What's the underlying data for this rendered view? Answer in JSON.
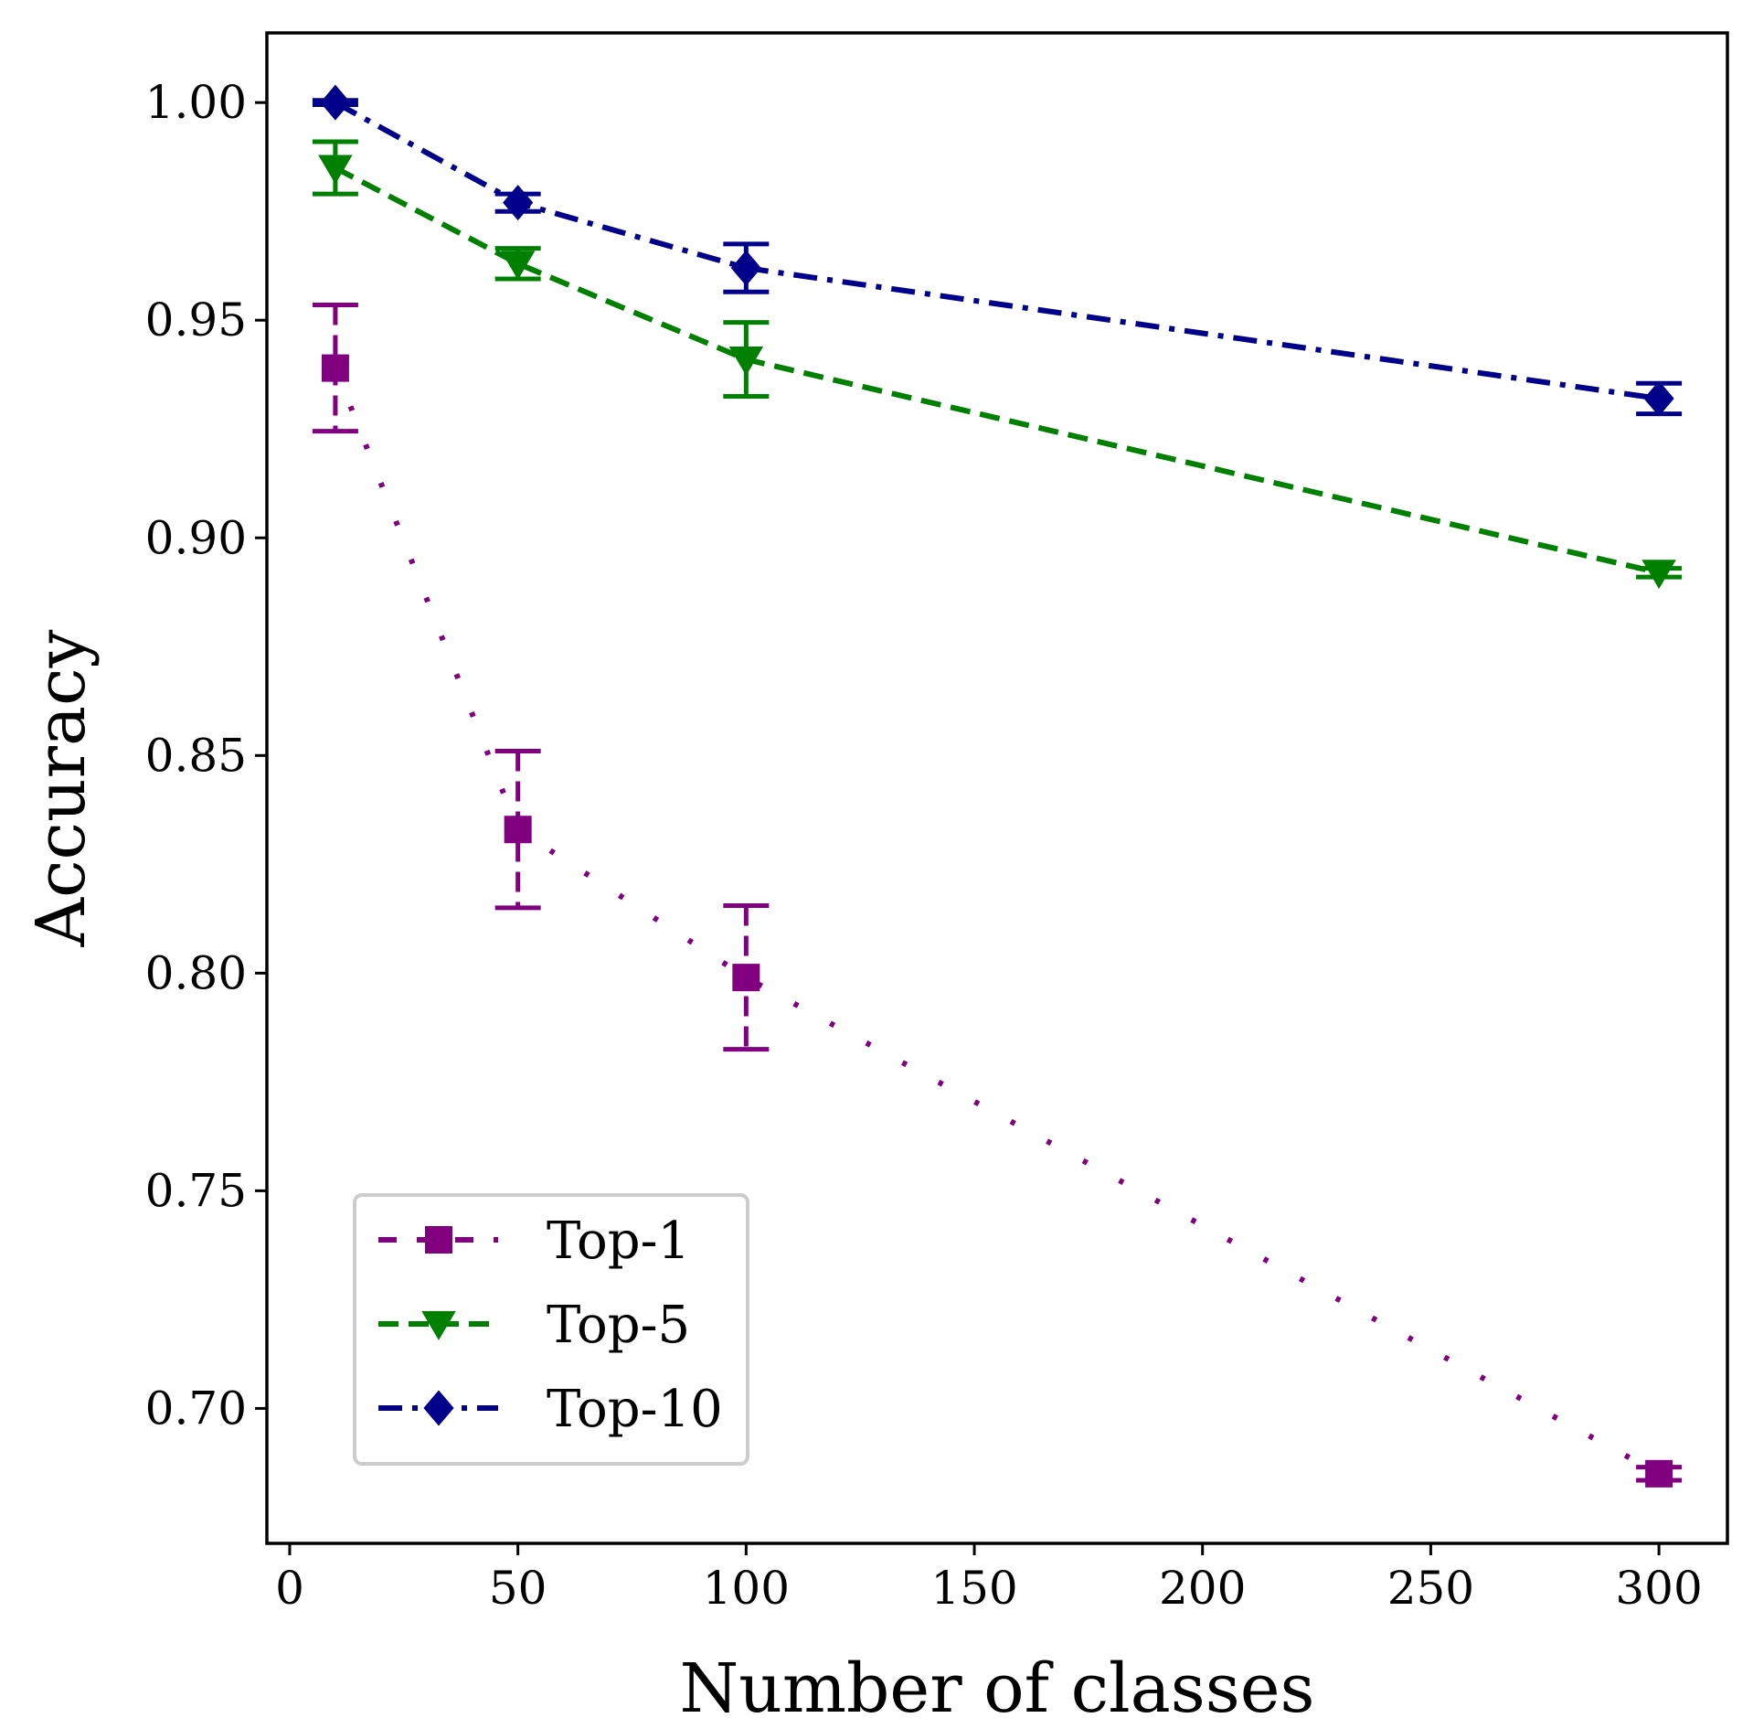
{
  "chart_data": {
    "type": "line",
    "title": "",
    "xlabel": "Number of classes",
    "ylabel": "Accuracy",
    "xlim": [
      -5,
      315
    ],
    "ylim": [
      0.669,
      1.016
    ],
    "xticks": [
      0,
      50,
      100,
      150,
      200,
      250,
      300
    ],
    "xtick_labels": [
      "0",
      "50",
      "100",
      "150",
      "200",
      "250",
      "300"
    ],
    "yticks": [
      0.7,
      0.75,
      0.8,
      0.85,
      0.9,
      0.95,
      1.0
    ],
    "ytick_labels": [
      "0.70",
      "0.75",
      "0.80",
      "0.85",
      "0.90",
      "0.95",
      "1.00"
    ],
    "grid": false,
    "legend_position": "lower-left",
    "x": [
      10,
      50,
      100,
      300
    ],
    "series": [
      {
        "name": "Top-1",
        "values": [
          0.939,
          0.833,
          0.799,
          0.685
        ],
        "errors": [
          0.0145,
          0.018,
          0.0165,
          0.0015
        ],
        "color": "#800080",
        "marker": "square",
        "linestyle": "dotted"
      },
      {
        "name": "Top-5",
        "values": [
          0.985,
          0.963,
          0.941,
          0.892
        ],
        "errors": [
          0.006,
          0.0035,
          0.0085,
          0.001
        ],
        "color": "#008000",
        "marker": "triangle-down",
        "linestyle": "dashed"
      },
      {
        "name": "Top-10",
        "values": [
          1.0,
          0.977,
          0.962,
          0.932
        ],
        "errors": [
          0.0005,
          0.002,
          0.0055,
          0.0035
        ],
        "color": "#00008B",
        "marker": "diamond",
        "linestyle": "dashdot"
      }
    ]
  }
}
